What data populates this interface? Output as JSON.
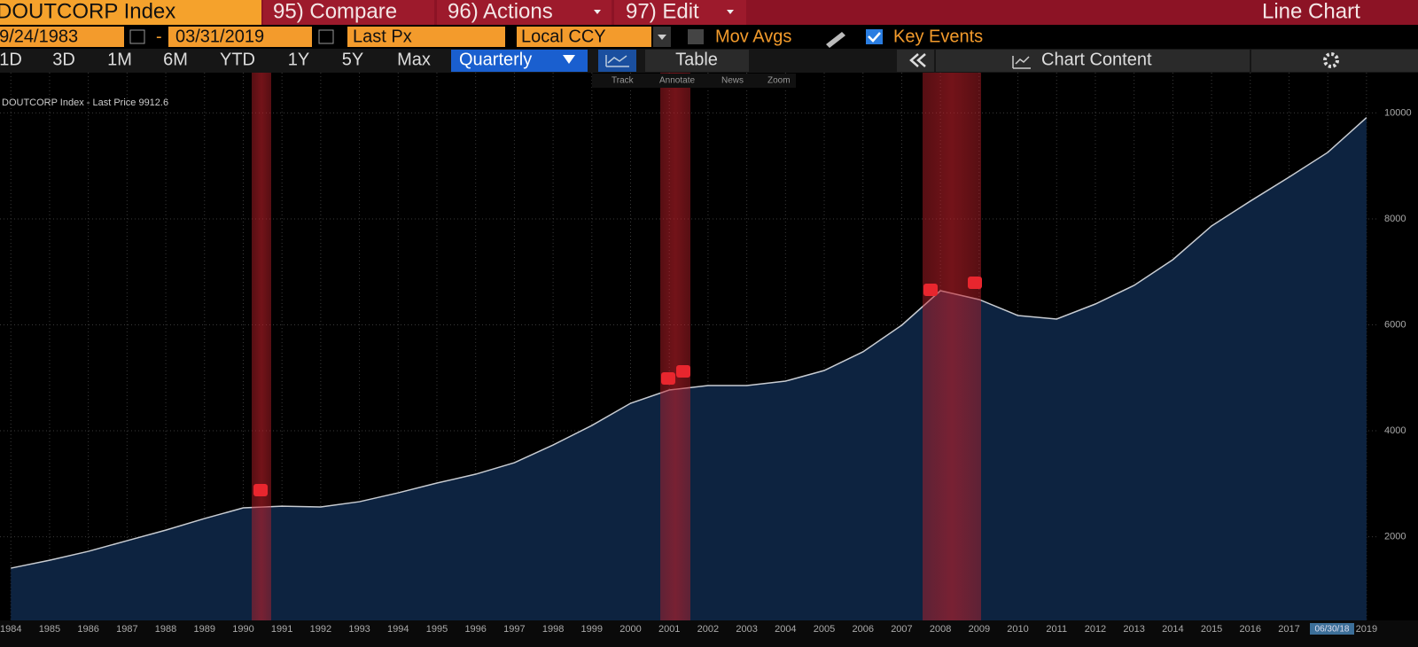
{
  "toolbar": {
    "security": "DOUTCORP Index",
    "menu": [
      "95) Compare",
      "96) Actions",
      "97) Edit"
    ],
    "view": "Line Chart"
  },
  "controls": {
    "start_date": "09/24/1983",
    "separator": "-",
    "end_date": "03/31/2019",
    "field": "Last Px",
    "currency": "Local CCY",
    "mov_avgs": "Mov Avgs",
    "key_events": "Key Events"
  },
  "periods": [
    "1D",
    "3D",
    "1M",
    "6M",
    "YTD",
    "1Y",
    "5Y",
    "Max"
  ],
  "frequency": "Quarterly",
  "table": "Table",
  "chart_content": "Chart Content",
  "tools": [
    "Track",
    "Annotate",
    "News",
    "Zoom"
  ],
  "chart_data": {
    "type": "area",
    "legend": "DOUTCORP Index - Last Price 9912.6",
    "date_tag": "06/30/18",
    "x": [
      1984,
      1985,
      1986,
      1987,
      1988,
      1989,
      1990,
      1991,
      1992,
      1993,
      1994,
      1995,
      1996,
      1997,
      1998,
      1999,
      2000,
      2001,
      2002,
      2003,
      2004,
      2005,
      2006,
      2007,
      2008,
      2009,
      2010,
      2011,
      2012,
      2013,
      2014,
      2015,
      2016,
      2017,
      2018,
      2019
    ],
    "values": [
      1406,
      1556,
      1724,
      1925,
      2125,
      2343,
      2544,
      2577,
      2561,
      2661,
      2828,
      3013,
      3180,
      3397,
      3732,
      4100,
      4519,
      4770,
      4854,
      4854,
      4937,
      5138,
      5490,
      5992,
      6644,
      6477,
      6176,
      6109,
      6393,
      6745,
      7230,
      7866,
      8335,
      8787,
      9255,
      9912.6
    ],
    "color": "#c8ccd2",
    "fill": "#0d2340",
    "xlim": [
      1983.72,
      2019.3
    ],
    "xticks": [
      1984,
      1985,
      1986,
      1987,
      1988,
      1989,
      1990,
      1991,
      1992,
      1993,
      1994,
      1995,
      1996,
      1997,
      1998,
      1999,
      2000,
      2001,
      2002,
      2003,
      2004,
      2005,
      2006,
      2007,
      2008,
      2009,
      2010,
      2011,
      2012,
      2013,
      2014,
      2015,
      2016,
      2017,
      2018,
      2019
    ],
    "ylim": [
      420,
      10760
    ],
    "yticks": [
      2000,
      4000,
      6000,
      8000,
      10000
    ],
    "grid": true
  }
}
